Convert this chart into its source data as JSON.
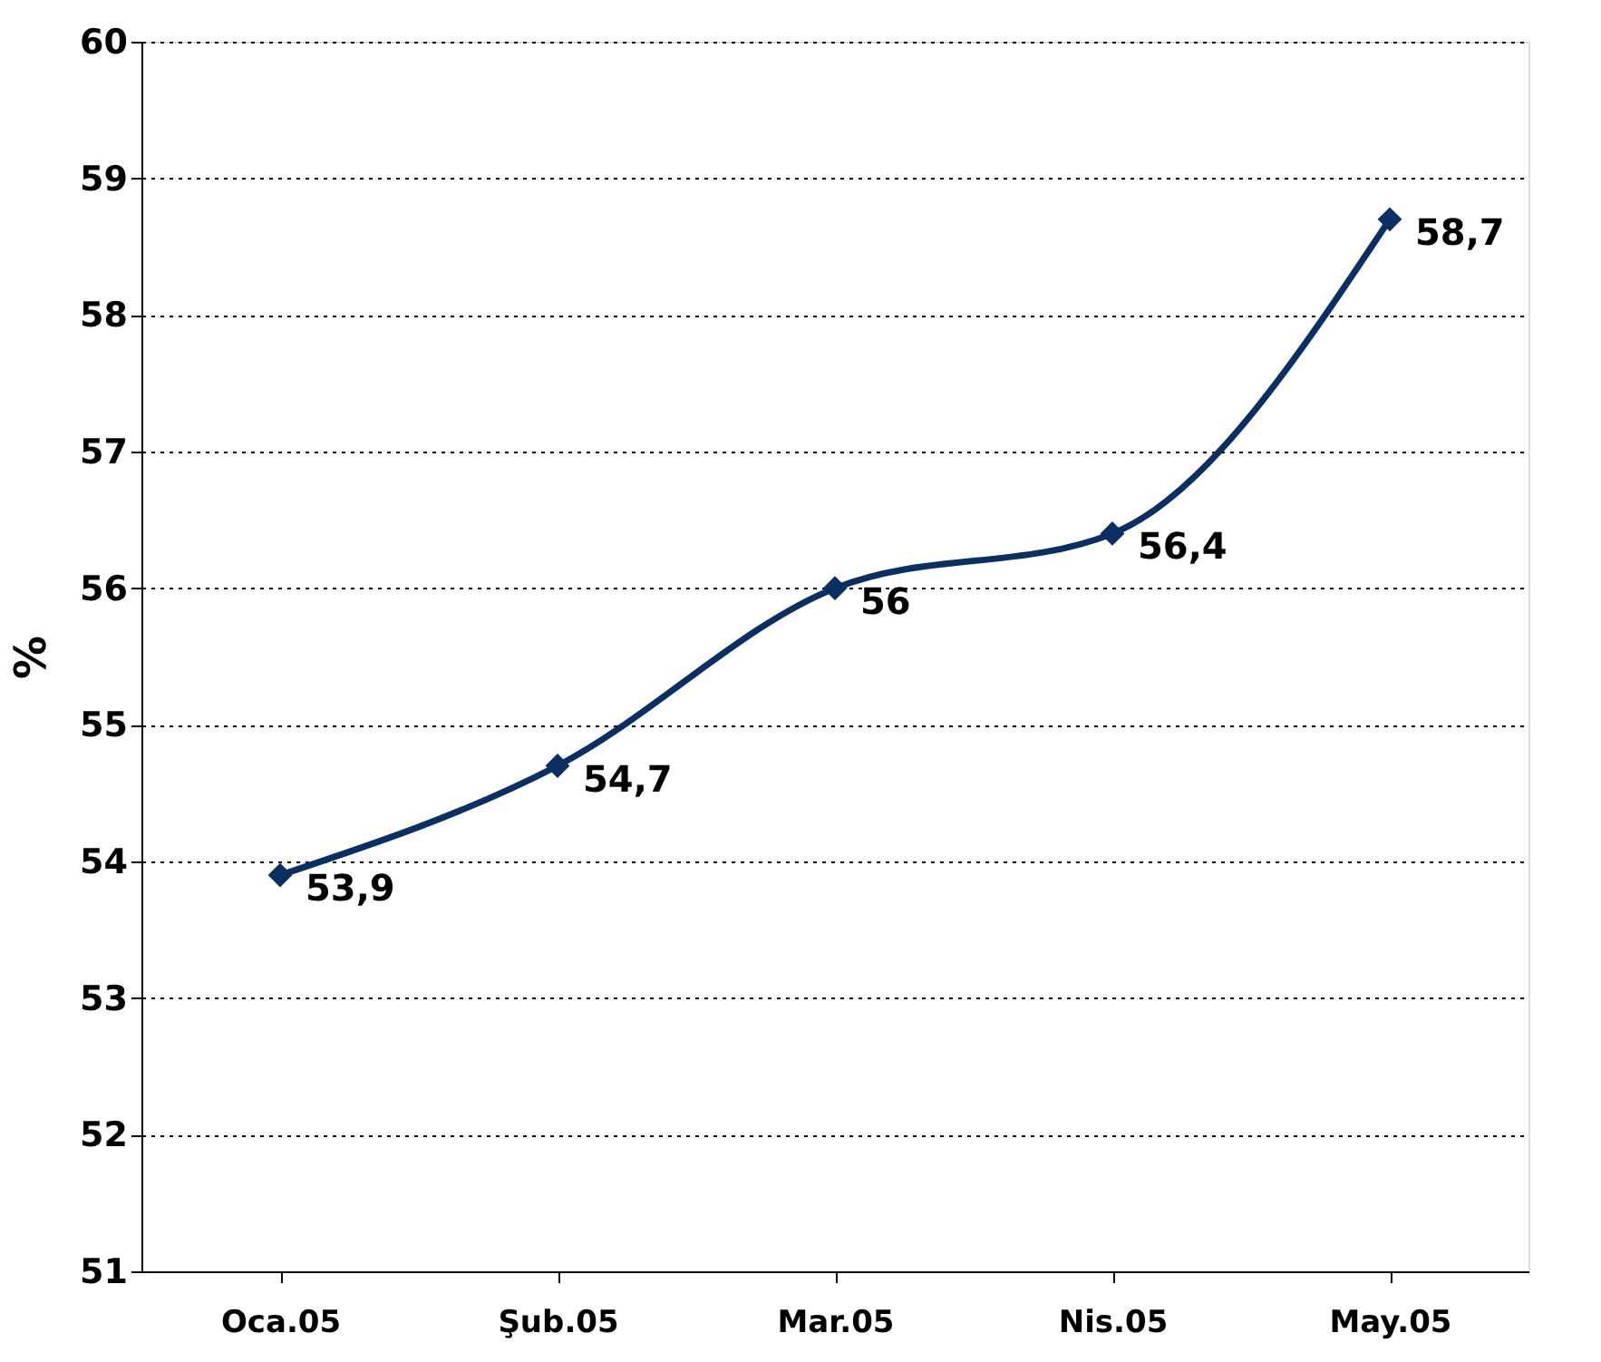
{
  "chart_data": {
    "type": "line",
    "ylabel": "%",
    "categories": [
      "Oca.05",
      "Şub.05",
      "Mar.05",
      "Nis.05",
      "May.05"
    ],
    "series": [
      {
        "color": "#0b2f63",
        "values": [
          53.9,
          54.7,
          56,
          56.4,
          58.7
        ],
        "value_labels": [
          "53,9",
          "54,7",
          "56",
          "56,4",
          "58,7"
        ]
      }
    ],
    "ylim": [
      51,
      60
    ],
    "yticks": [
      51,
      52,
      53,
      54,
      55,
      56,
      57,
      58,
      59,
      60
    ],
    "grid": "y",
    "marker": "diamond",
    "line_style": "solid"
  }
}
